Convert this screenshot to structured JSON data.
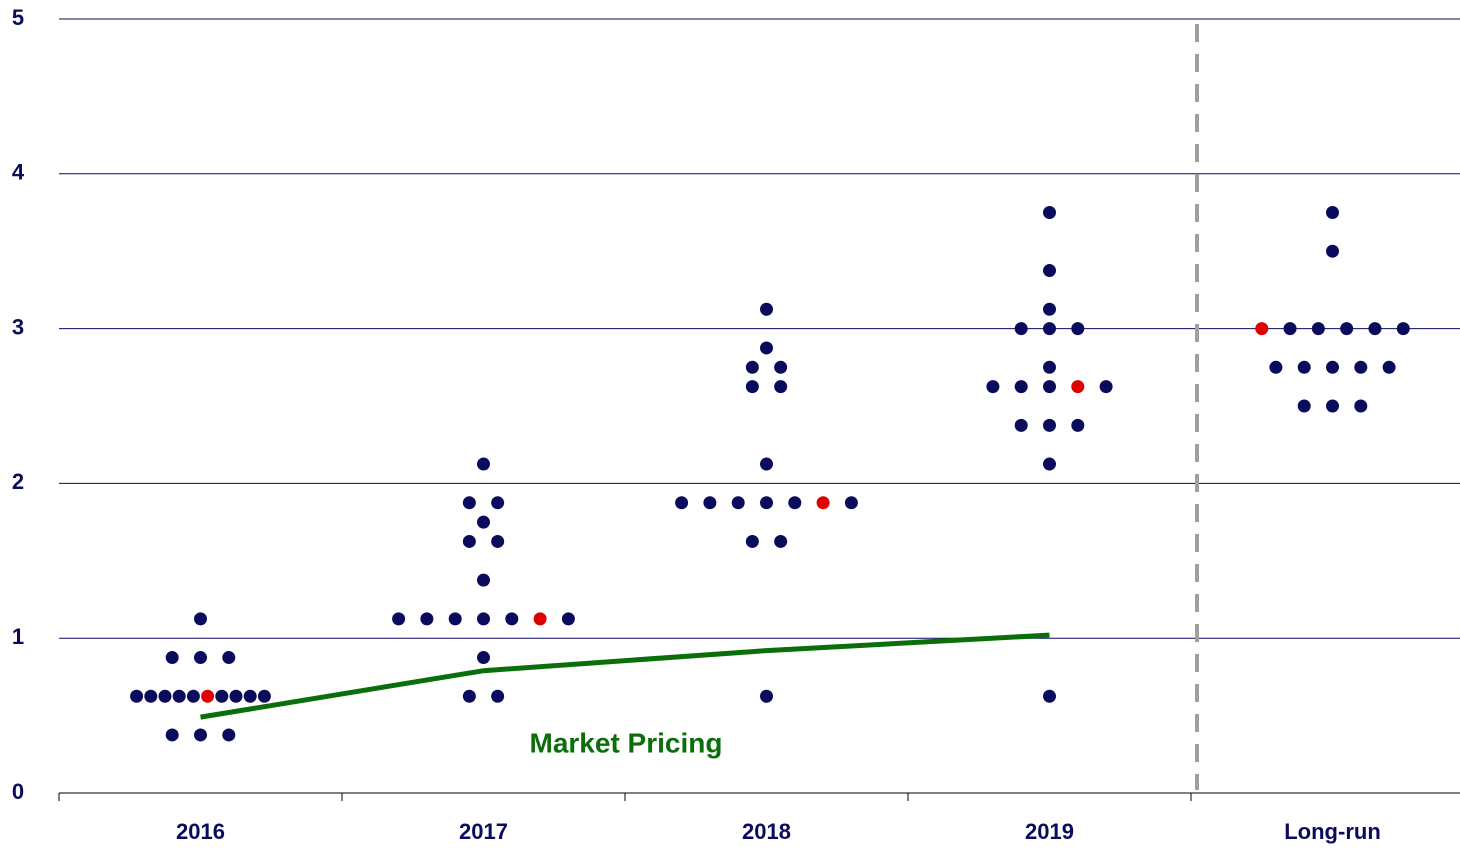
{
  "chart_data": {
    "type": "dot",
    "categories": [
      "2016",
      "2017",
      "2018",
      "2019",
      "Long-run"
    ],
    "values": [
      [
        1.125,
        0.875,
        0.875,
        0.875,
        0.625,
        0.625,
        0.625,
        0.625,
        0.625,
        0.625,
        0.625,
        0.625,
        0.625,
        0.625,
        0.375,
        0.375,
        0.375
      ],
      [
        2.125,
        1.875,
        1.875,
        1.75,
        1.625,
        1.625,
        1.375,
        1.125,
        1.125,
        1.125,
        1.125,
        1.125,
        1.125,
        1.125,
        0.875,
        0.625,
        0.625
      ],
      [
        3.125,
        2.875,
        2.75,
        2.75,
        2.625,
        2.625,
        2.125,
        1.875,
        1.875,
        1.875,
        1.875,
        1.875,
        1.875,
        1.875,
        1.625,
        1.625,
        0.625
      ],
      [
        3.75,
        3.375,
        3.125,
        3.0,
        3.0,
        3.0,
        2.75,
        2.625,
        2.625,
        2.625,
        2.625,
        2.625,
        2.375,
        2.375,
        2.375,
        2.125,
        0.625
      ],
      [
        3.75,
        3.5,
        3.0,
        3.0,
        3.0,
        3.0,
        3.0,
        3.0,
        2.75,
        2.75,
        2.75,
        2.75,
        2.75,
        2.5,
        2.5,
        2.5
      ]
    ],
    "color": "#0b0b5e",
    "highlight_color": "#e00000",
    "highlight": [
      9,
      12,
      12,
      10,
      2
    ],
    "line": {
      "name": "Market Pricing",
      "color": "#0a6e0a",
      "values": [
        0.49,
        0.79,
        0.92,
        1.02,
        null
      ]
    },
    "ylim": [
      0,
      5
    ],
    "yticks": [
      0,
      1,
      2,
      3,
      4,
      5
    ],
    "grid": true
  }
}
